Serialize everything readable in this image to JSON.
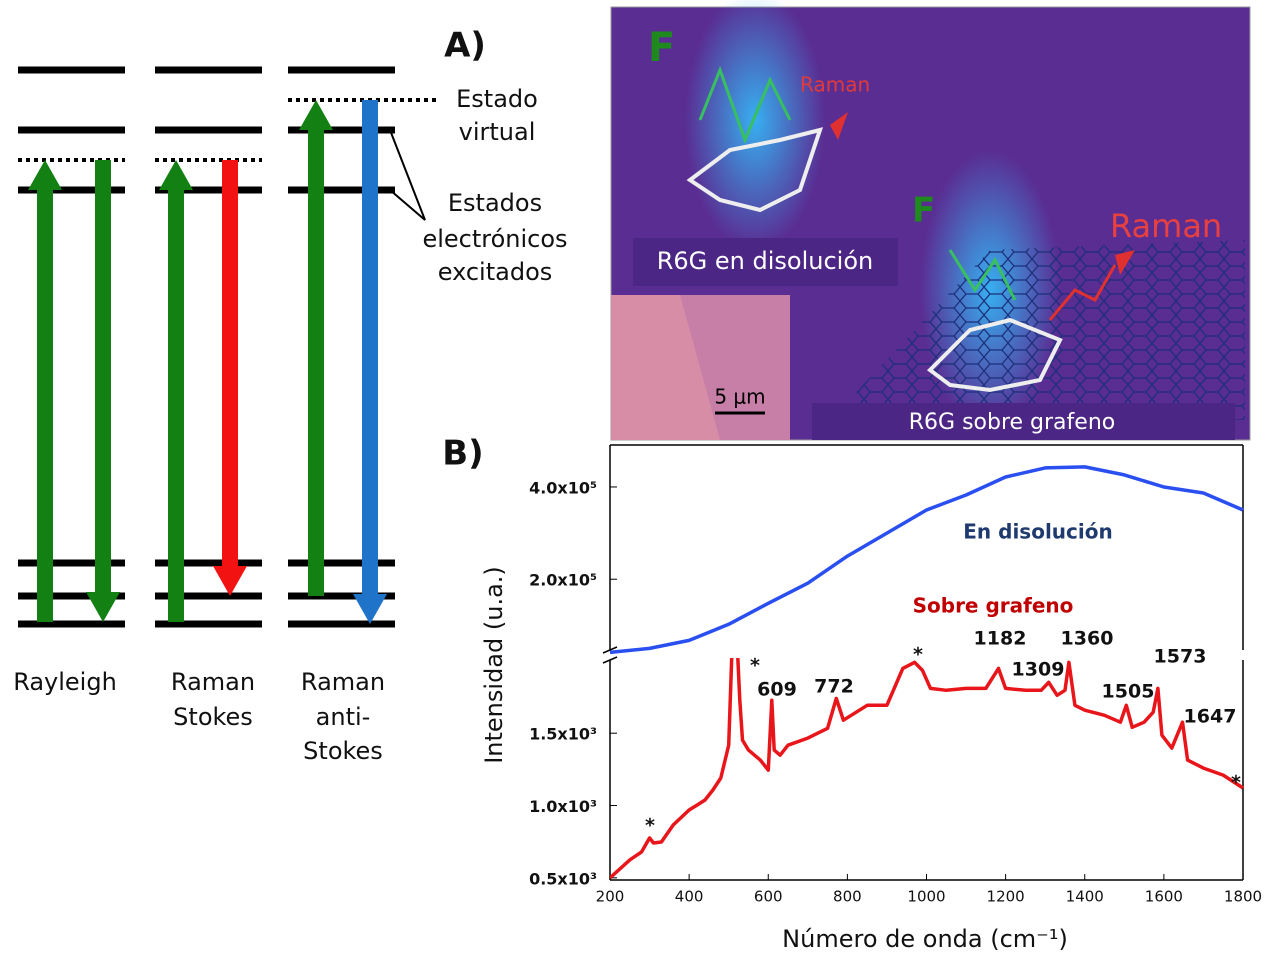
{
  "diagram": {
    "panel_labels": [
      "A)",
      "B)"
    ],
    "virtual_state": [
      "Estado",
      "virtual"
    ],
    "excited_states": [
      "Estados",
      "electrónicos",
      "excitados"
    ],
    "processes": [
      [
        "Rayleigh"
      ],
      [
        "Raman",
        "Stokes"
      ],
      [
        "Raman",
        "anti-",
        "Stokes"
      ]
    ]
  },
  "panel_a": {
    "texts": [
      "F",
      "Raman",
      "R6G en disolución",
      "F",
      "Raman",
      "R6G sobre grafeno",
      "5 μm"
    ]
  },
  "chart_data": {
    "type": "line",
    "x_label": "Número de onda (cm⁻¹)",
    "y_label": "Intensidad (u.a.)",
    "xlim": [
      200,
      1800
    ],
    "xticks": [
      200,
      400,
      600,
      800,
      1000,
      1200,
      1400,
      1600,
      1800
    ],
    "ylim": [
      485,
      2020
    ],
    "yticks": [
      {
        "value": 500,
        "label": "0.5x10³"
      },
      {
        "value": 1000,
        "label": "1.0x10³"
      },
      {
        "value": 1500,
        "label": "1.5x10³"
      }
    ],
    "y2lim": [
      40000,
      491000
    ],
    "y2ticks": [
      {
        "value": 200000,
        "label": "2.0x10⁵"
      },
      {
        "value": 400000,
        "label": "4.0x10⁵"
      }
    ],
    "series": [
      {
        "name": "En disolución",
        "color": "#2a4ff0",
        "axis": "y2",
        "x": [
          200,
          300,
          400,
          500,
          600,
          700,
          800,
          900,
          1000,
          1100,
          1200,
          1300,
          1400,
          1500,
          1600,
          1700,
          1800
        ],
        "values": [
          41300,
          50000,
          67400,
          102200,
          147800,
          191300,
          250000,
          300000,
          350000,
          382600,
          421700,
          441300,
          443500,
          426100,
          400000,
          387000,
          350000
        ]
      },
      {
        "name": "Sobre grafeno",
        "color": "#e8161a",
        "x": [
          200,
          250,
          280,
          300,
          310,
          330,
          360,
          400,
          420,
          440,
          460,
          480,
          500,
          510,
          520,
          528,
          535,
          550,
          580,
          600,
          609,
          615,
          630,
          650,
          700,
          750,
          772,
          790,
          850,
          900,
          940,
          970,
          990,
          1010,
          1050,
          1100,
          1150,
          1182,
          1200,
          1250,
          1290,
          1309,
          1330,
          1350,
          1360,
          1375,
          1400,
          1450,
          1490,
          1505,
          1520,
          1550,
          1573,
          1585,
          1595,
          1620,
          1647,
          1660,
          1700,
          1750,
          1800
        ],
        "values": [
          500,
          624,
          679,
          776,
          741,
          748,
          866,
          969,
          1003,
          1038,
          1107,
          1190,
          1417,
          2200,
          2200,
          1728,
          1452,
          1383,
          1314,
          1245,
          1728,
          1383,
          1348,
          1417,
          1466,
          1534,
          1741,
          1590,
          1693,
          1693,
          1948,
          1990,
          1934,
          1810,
          1797,
          1810,
          1810,
          1948,
          1810,
          1797,
          1797,
          1852,
          1762,
          1797,
          1990,
          1693,
          1659,
          1624,
          1576,
          1693,
          1541,
          1576,
          1645,
          1810,
          1486,
          1397,
          1576,
          1314,
          1259,
          1210,
          1121
        ]
      }
    ],
    "annotations": [
      "609",
      "772",
      "1182",
      "1309",
      "1360",
      "1505",
      "1573",
      "1647",
      "*",
      "*",
      "*",
      "*"
    ]
  }
}
